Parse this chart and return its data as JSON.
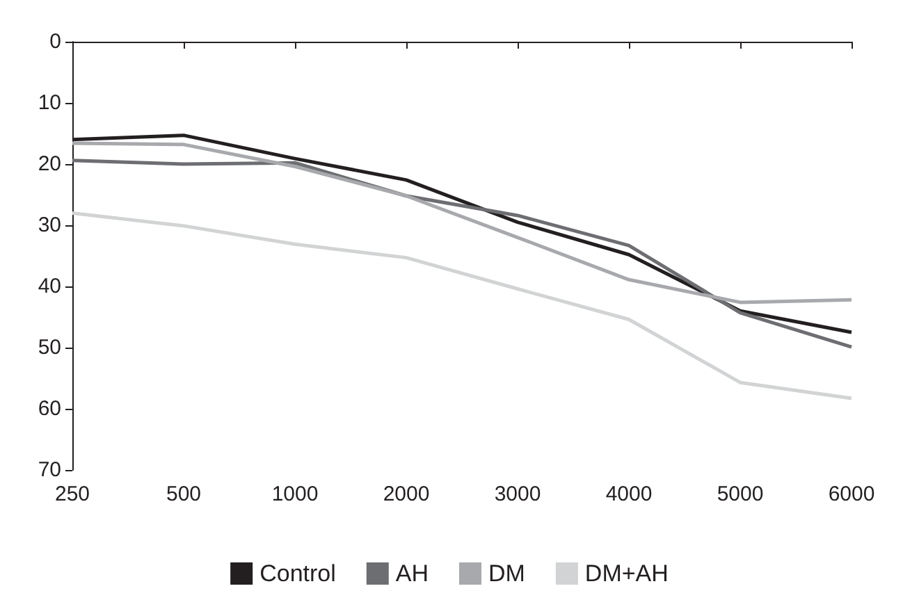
{
  "chart_data": {
    "type": "line",
    "categories": [
      "250",
      "500",
      "1000",
      "2000",
      "3000",
      "4000",
      "5000",
      "6000"
    ],
    "series": [
      {
        "name": "Control",
        "color": "#231f20",
        "values": [
          16,
          15.3,
          19.1,
          22.6,
          29.5,
          34.8,
          44,
          47.5
        ]
      },
      {
        "name": "AH",
        "color": "#6d6e71",
        "values": [
          19.4,
          20,
          19.8,
          25.2,
          28.4,
          33.3,
          44.3,
          49.9
        ]
      },
      {
        "name": "DM",
        "color": "#a7a9ac",
        "values": [
          16.6,
          16.8,
          20.4,
          25.2,
          32,
          38.9,
          42.6,
          42.2
        ]
      },
      {
        "name": "DM+AH",
        "color": "#d1d3d4",
        "values": [
          28,
          30.1,
          33.1,
          35.3,
          40.4,
          45.4,
          55.7,
          58.3
        ]
      }
    ],
    "ylim": [
      70,
      0
    ],
    "yticks": [
      0,
      10,
      20,
      30,
      40,
      50,
      60,
      70
    ],
    "grid": false,
    "legend": "bottom",
    "marker": "none",
    "line_style": "solid"
  }
}
